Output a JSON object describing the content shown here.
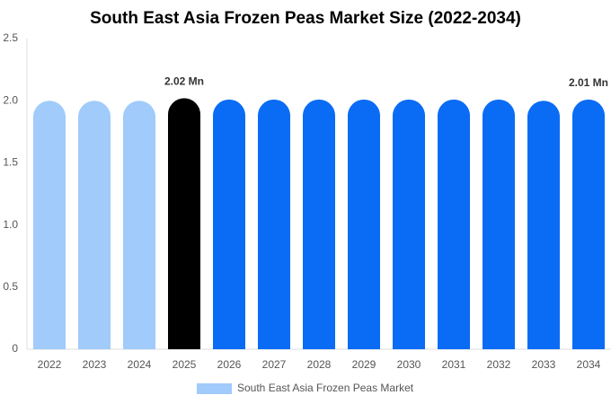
{
  "chart_data": {
    "type": "bar",
    "title": "South East Asia Frozen Peas Market Size (2022-2034)",
    "categories": [
      "2022",
      "2023",
      "2024",
      "2025",
      "2026",
      "2027",
      "2028",
      "2029",
      "2030",
      "2031",
      "2032",
      "2033",
      "2034"
    ],
    "series": [
      {
        "name": "South East Asia Frozen Peas Market",
        "color": "#a0cbfb",
        "values": [
          2.0,
          2.0,
          2.0,
          2.02,
          2.01,
          2.01,
          2.01,
          2.01,
          2.01,
          2.01,
          2.01,
          2.0,
          2.01
        ],
        "value_labels": [
          null,
          null,
          null,
          "2.02 Mn",
          null,
          null,
          null,
          null,
          null,
          null,
          null,
          null,
          "2.01 Mn"
        ],
        "colors": [
          "#a0cbfb",
          "#a0cbfb",
          "#a0cbfb",
          "#000000",
          "#0a6cf5",
          "#0a6cf5",
          "#0a6cf5",
          "#0a6cf5",
          "#0a6cf5",
          "#0a6cf5",
          "#0a6cf5",
          "#0a6cf5",
          "#0a6cf5"
        ]
      }
    ],
    "ylim": [
      0,
      2.5
    ],
    "yticks": [
      0,
      0.5,
      {
        "value": 1,
        "label": "1.0"
      },
      1.5,
      {
        "value": 2,
        "label": "2.0"
      },
      2.5
    ],
    "grid": false
  }
}
